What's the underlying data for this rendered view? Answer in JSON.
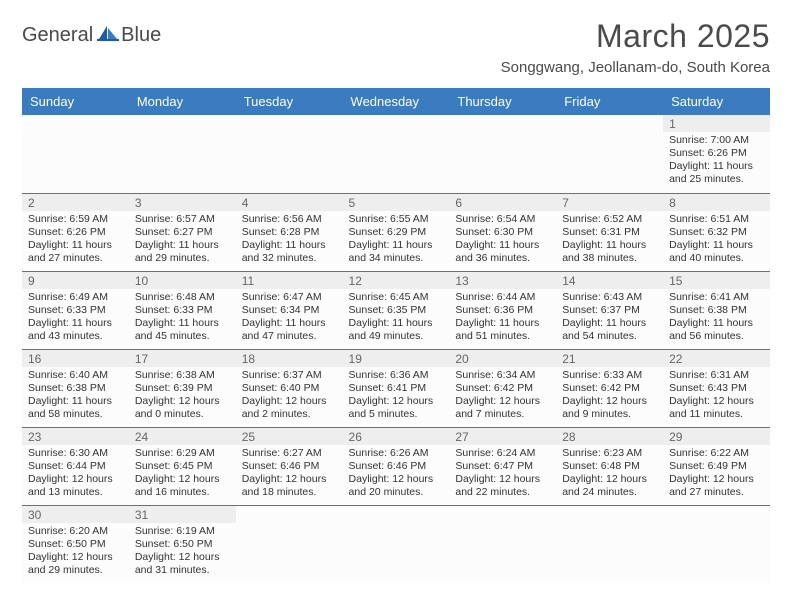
{
  "brand": {
    "name1": "General",
    "name2": "Blue"
  },
  "title": "March 2025",
  "location": "Songgwang, Jeollanam-do, South Korea",
  "colors": {
    "header_bg": "#3b7bbf",
    "header_text": "#ffffff",
    "row_border": "#3b7bbf",
    "daynum_bg": "#eeeeee",
    "text": "#333333",
    "page_bg": "#ffffff"
  },
  "weekdays": [
    "Sunday",
    "Monday",
    "Tuesday",
    "Wednesday",
    "Thursday",
    "Friday",
    "Saturday"
  ],
  "weeks": [
    [
      {
        "n": "",
        "sunrise": "",
        "sunset": "",
        "daylight": "",
        "empty": true
      },
      {
        "n": "",
        "sunrise": "",
        "sunset": "",
        "daylight": "",
        "empty": true
      },
      {
        "n": "",
        "sunrise": "",
        "sunset": "",
        "daylight": "",
        "empty": true
      },
      {
        "n": "",
        "sunrise": "",
        "sunset": "",
        "daylight": "",
        "empty": true
      },
      {
        "n": "",
        "sunrise": "",
        "sunset": "",
        "daylight": "",
        "empty": true
      },
      {
        "n": "",
        "sunrise": "",
        "sunset": "",
        "daylight": "",
        "empty": true
      },
      {
        "n": "1",
        "sunrise": "Sunrise: 7:00 AM",
        "sunset": "Sunset: 6:26 PM",
        "daylight": "Daylight: 11 hours and 25 minutes."
      }
    ],
    [
      {
        "n": "2",
        "sunrise": "Sunrise: 6:59 AM",
        "sunset": "Sunset: 6:26 PM",
        "daylight": "Daylight: 11 hours and 27 minutes."
      },
      {
        "n": "3",
        "sunrise": "Sunrise: 6:57 AM",
        "sunset": "Sunset: 6:27 PM",
        "daylight": "Daylight: 11 hours and 29 minutes."
      },
      {
        "n": "4",
        "sunrise": "Sunrise: 6:56 AM",
        "sunset": "Sunset: 6:28 PM",
        "daylight": "Daylight: 11 hours and 32 minutes."
      },
      {
        "n": "5",
        "sunrise": "Sunrise: 6:55 AM",
        "sunset": "Sunset: 6:29 PM",
        "daylight": "Daylight: 11 hours and 34 minutes."
      },
      {
        "n": "6",
        "sunrise": "Sunrise: 6:54 AM",
        "sunset": "Sunset: 6:30 PM",
        "daylight": "Daylight: 11 hours and 36 minutes."
      },
      {
        "n": "7",
        "sunrise": "Sunrise: 6:52 AM",
        "sunset": "Sunset: 6:31 PM",
        "daylight": "Daylight: 11 hours and 38 minutes."
      },
      {
        "n": "8",
        "sunrise": "Sunrise: 6:51 AM",
        "sunset": "Sunset: 6:32 PM",
        "daylight": "Daylight: 11 hours and 40 minutes."
      }
    ],
    [
      {
        "n": "9",
        "sunrise": "Sunrise: 6:49 AM",
        "sunset": "Sunset: 6:33 PM",
        "daylight": "Daylight: 11 hours and 43 minutes."
      },
      {
        "n": "10",
        "sunrise": "Sunrise: 6:48 AM",
        "sunset": "Sunset: 6:33 PM",
        "daylight": "Daylight: 11 hours and 45 minutes."
      },
      {
        "n": "11",
        "sunrise": "Sunrise: 6:47 AM",
        "sunset": "Sunset: 6:34 PM",
        "daylight": "Daylight: 11 hours and 47 minutes."
      },
      {
        "n": "12",
        "sunrise": "Sunrise: 6:45 AM",
        "sunset": "Sunset: 6:35 PM",
        "daylight": "Daylight: 11 hours and 49 minutes."
      },
      {
        "n": "13",
        "sunrise": "Sunrise: 6:44 AM",
        "sunset": "Sunset: 6:36 PM",
        "daylight": "Daylight: 11 hours and 51 minutes."
      },
      {
        "n": "14",
        "sunrise": "Sunrise: 6:43 AM",
        "sunset": "Sunset: 6:37 PM",
        "daylight": "Daylight: 11 hours and 54 minutes."
      },
      {
        "n": "15",
        "sunrise": "Sunrise: 6:41 AM",
        "sunset": "Sunset: 6:38 PM",
        "daylight": "Daylight: 11 hours and 56 minutes."
      }
    ],
    [
      {
        "n": "16",
        "sunrise": "Sunrise: 6:40 AM",
        "sunset": "Sunset: 6:38 PM",
        "daylight": "Daylight: 11 hours and 58 minutes."
      },
      {
        "n": "17",
        "sunrise": "Sunrise: 6:38 AM",
        "sunset": "Sunset: 6:39 PM",
        "daylight": "Daylight: 12 hours and 0 minutes."
      },
      {
        "n": "18",
        "sunrise": "Sunrise: 6:37 AM",
        "sunset": "Sunset: 6:40 PM",
        "daylight": "Daylight: 12 hours and 2 minutes."
      },
      {
        "n": "19",
        "sunrise": "Sunrise: 6:36 AM",
        "sunset": "Sunset: 6:41 PM",
        "daylight": "Daylight: 12 hours and 5 minutes."
      },
      {
        "n": "20",
        "sunrise": "Sunrise: 6:34 AM",
        "sunset": "Sunset: 6:42 PM",
        "daylight": "Daylight: 12 hours and 7 minutes."
      },
      {
        "n": "21",
        "sunrise": "Sunrise: 6:33 AM",
        "sunset": "Sunset: 6:42 PM",
        "daylight": "Daylight: 12 hours and 9 minutes."
      },
      {
        "n": "22",
        "sunrise": "Sunrise: 6:31 AM",
        "sunset": "Sunset: 6:43 PM",
        "daylight": "Daylight: 12 hours and 11 minutes."
      }
    ],
    [
      {
        "n": "23",
        "sunrise": "Sunrise: 6:30 AM",
        "sunset": "Sunset: 6:44 PM",
        "daylight": "Daylight: 12 hours and 13 minutes."
      },
      {
        "n": "24",
        "sunrise": "Sunrise: 6:29 AM",
        "sunset": "Sunset: 6:45 PM",
        "daylight": "Daylight: 12 hours and 16 minutes."
      },
      {
        "n": "25",
        "sunrise": "Sunrise: 6:27 AM",
        "sunset": "Sunset: 6:46 PM",
        "daylight": "Daylight: 12 hours and 18 minutes."
      },
      {
        "n": "26",
        "sunrise": "Sunrise: 6:26 AM",
        "sunset": "Sunset: 6:46 PM",
        "daylight": "Daylight: 12 hours and 20 minutes."
      },
      {
        "n": "27",
        "sunrise": "Sunrise: 6:24 AM",
        "sunset": "Sunset: 6:47 PM",
        "daylight": "Daylight: 12 hours and 22 minutes."
      },
      {
        "n": "28",
        "sunrise": "Sunrise: 6:23 AM",
        "sunset": "Sunset: 6:48 PM",
        "daylight": "Daylight: 12 hours and 24 minutes."
      },
      {
        "n": "29",
        "sunrise": "Sunrise: 6:22 AM",
        "sunset": "Sunset: 6:49 PM",
        "daylight": "Daylight: 12 hours and 27 minutes."
      }
    ],
    [
      {
        "n": "30",
        "sunrise": "Sunrise: 6:20 AM",
        "sunset": "Sunset: 6:50 PM",
        "daylight": "Daylight: 12 hours and 29 minutes."
      },
      {
        "n": "31",
        "sunrise": "Sunrise: 6:19 AM",
        "sunset": "Sunset: 6:50 PM",
        "daylight": "Daylight: 12 hours and 31 minutes."
      },
      {
        "n": "",
        "sunrise": "",
        "sunset": "",
        "daylight": "",
        "empty": true
      },
      {
        "n": "",
        "sunrise": "",
        "sunset": "",
        "daylight": "",
        "empty": true
      },
      {
        "n": "",
        "sunrise": "",
        "sunset": "",
        "daylight": "",
        "empty": true
      },
      {
        "n": "",
        "sunrise": "",
        "sunset": "",
        "daylight": "",
        "empty": true
      },
      {
        "n": "",
        "sunrise": "",
        "sunset": "",
        "daylight": "",
        "empty": true
      }
    ]
  ]
}
